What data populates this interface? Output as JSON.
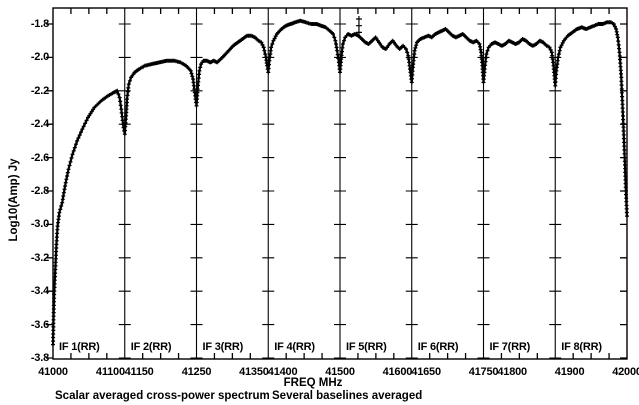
{
  "chart_data": {
    "type": "line",
    "title": "",
    "xlabel": "FREQ MHz",
    "ylabel": "Log10(Amp) Jy",
    "marker": "+",
    "grid": false,
    "xlim": [
      41000,
      42000
    ],
    "ylim": [
      -3.8,
      -1.7
    ],
    "x_minor_tick_mhz": 31.25,
    "panel_boundaries_mhz": [
      41125,
      41250,
      41375,
      41500,
      41625,
      41750,
      41875
    ],
    "panels": [
      {
        "label": "IF 1(RR)",
        "start": 41000,
        "end": 41125
      },
      {
        "label": "IF 2(RR)",
        "start": 41125,
        "end": 41250
      },
      {
        "label": "IF 3(RR)",
        "start": 41250,
        "end": 41375
      },
      {
        "label": "IF 4(RR)",
        "start": 41375,
        "end": 41500
      },
      {
        "label": "IF 5(RR)",
        "start": 41500,
        "end": 41625
      },
      {
        "label": "IF 6(RR)",
        "start": 41625,
        "end": 41750
      },
      {
        "label": "IF 7(RR)",
        "start": 41750,
        "end": 41875
      },
      {
        "label": "IF 8(RR)",
        "start": 41875,
        "end": 42000
      }
    ],
    "xticks": [
      {
        "value": 41000,
        "label": "41000"
      },
      {
        "value": 41100,
        "label": "41100"
      },
      {
        "value": 41150,
        "label": "41150"
      },
      {
        "value": 41250,
        "label": "41250"
      },
      {
        "value": 41350,
        "label": "41350"
      },
      {
        "value": 41400,
        "label": "41400"
      },
      {
        "value": 41500,
        "label": "41500"
      },
      {
        "value": 41600,
        "label": "41600"
      },
      {
        "value": 41650,
        "label": "41650"
      },
      {
        "value": 41750,
        "label": "41750"
      },
      {
        "value": 41800,
        "label": "41800"
      },
      {
        "value": 41900,
        "label": "41900"
      },
      {
        "value": 42000,
        "label": "42000"
      }
    ],
    "yticks": [
      {
        "value": -1.8,
        "label": "-1.8"
      },
      {
        "value": -2.0,
        "label": "-2.0"
      },
      {
        "value": -2.2,
        "label": "-2.2"
      },
      {
        "value": -2.4,
        "label": "-2.4"
      },
      {
        "value": -2.6,
        "label": "-2.6"
      },
      {
        "value": -2.8,
        "label": "-2.8"
      },
      {
        "value": -3.0,
        "label": "-3.0"
      },
      {
        "value": -3.2,
        "label": "-3.2"
      },
      {
        "value": -3.4,
        "label": "-3.4"
      },
      {
        "value": -3.6,
        "label": "-3.6"
      },
      {
        "value": -3.8,
        "label": "-3.8"
      }
    ],
    "series": [
      {
        "name": "scalar averaged cross-power spectrum",
        "points": [
          [
            41000,
            -3.72
          ],
          [
            41001,
            -3.55
          ],
          [
            41002,
            -3.42
          ],
          [
            41004,
            -3.27
          ],
          [
            41006,
            -3.12
          ],
          [
            41008,
            -3.01
          ],
          [
            41011,
            -2.93
          ],
          [
            41016,
            -2.87
          ],
          [
            41021,
            -2.77
          ],
          [
            41027,
            -2.67
          ],
          [
            41034,
            -2.58
          ],
          [
            41042,
            -2.5
          ],
          [
            41051,
            -2.43
          ],
          [
            41061,
            -2.36
          ],
          [
            41072,
            -2.3
          ],
          [
            41084,
            -2.26
          ],
          [
            41096,
            -2.23
          ],
          [
            41106,
            -2.21
          ],
          [
            41112,
            -2.2
          ],
          [
            41116,
            -2.24
          ],
          [
            41119,
            -2.31
          ],
          [
            41122,
            -2.4
          ],
          [
            41125,
            -2.46
          ],
          [
            41127,
            -2.37
          ],
          [
            41129,
            -2.25
          ],
          [
            41132,
            -2.16
          ],
          [
            41136,
            -2.12
          ],
          [
            41142,
            -2.09
          ],
          [
            41150,
            -2.07
          ],
          [
            41160,
            -2.05
          ],
          [
            41172,
            -2.04
          ],
          [
            41185,
            -2.03
          ],
          [
            41198,
            -2.02
          ],
          [
            41212,
            -2.02
          ],
          [
            41222,
            -2.03
          ],
          [
            41232,
            -2.05
          ],
          [
            41240,
            -2.08
          ],
          [
            41244,
            -2.13
          ],
          [
            41247,
            -2.21
          ],
          [
            41250,
            -2.29
          ],
          [
            41252,
            -2.19
          ],
          [
            41255,
            -2.08
          ],
          [
            41258,
            -2.04
          ],
          [
            41262,
            -2.02
          ],
          [
            41268,
            -2.02
          ],
          [
            41274,
            -2.03
          ],
          [
            41280,
            -2.02
          ],
          [
            41286,
            -2.03
          ],
          [
            41292,
            -2.01
          ],
          [
            41298,
            -1.99
          ],
          [
            41306,
            -1.96
          ],
          [
            41314,
            -1.93
          ],
          [
            41322,
            -1.91
          ],
          [
            41330,
            -1.89
          ],
          [
            41338,
            -1.87
          ],
          [
            41345,
            -1.87
          ],
          [
            41352,
            -1.88
          ],
          [
            41358,
            -1.9
          ],
          [
            41363,
            -1.91
          ],
          [
            41367,
            -1.94
          ],
          [
            41371,
            -2.0
          ],
          [
            41373,
            -2.05
          ],
          [
            41375,
            -2.09
          ],
          [
            41377,
            -2.02
          ],
          [
            41380,
            -1.94
          ],
          [
            41384,
            -1.9
          ],
          [
            41390,
            -1.86
          ],
          [
            41398,
            -1.83
          ],
          [
            41406,
            -1.81
          ],
          [
            41414,
            -1.8
          ],
          [
            41422,
            -1.79
          ],
          [
            41431,
            -1.78
          ],
          [
            41440,
            -1.79
          ],
          [
            41450,
            -1.8
          ],
          [
            41459,
            -1.8
          ],
          [
            41467,
            -1.81
          ],
          [
            41475,
            -1.82
          ],
          [
            41482,
            -1.84
          ],
          [
            41488,
            -1.86
          ],
          [
            41492,
            -1.9
          ],
          [
            41495,
            -1.96
          ],
          [
            41498,
            -2.03
          ],
          [
            41500,
            -2.09
          ],
          [
            41502,
            -2.01
          ],
          [
            41505,
            -1.92
          ],
          [
            41509,
            -1.88
          ],
          [
            41514,
            -1.86
          ],
          [
            41520,
            -1.87
          ],
          [
            41526,
            -1.86
          ],
          [
            41532,
            -1.87
          ],
          [
            41538,
            -1.89
          ],
          [
            41544,
            -1.91
          ],
          [
            41550,
            -1.92
          ],
          [
            41556,
            -1.9
          ],
          [
            41562,
            -1.88
          ],
          [
            41568,
            -1.91
          ],
          [
            41574,
            -1.94
          ],
          [
            41580,
            -1.95
          ],
          [
            41586,
            -1.92
          ],
          [
            41592,
            -1.9
          ],
          [
            41598,
            -1.93
          ],
          [
            41604,
            -1.95
          ],
          [
            41610,
            -1.93
          ],
          [
            41615,
            -1.95
          ],
          [
            41619,
            -1.99
          ],
          [
            41622,
            -2.07
          ],
          [
            41625,
            -2.15
          ],
          [
            41627,
            -2.06
          ],
          [
            41630,
            -1.96
          ],
          [
            41634,
            -1.91
          ],
          [
            41640,
            -1.89
          ],
          [
            41647,
            -1.88
          ],
          [
            41654,
            -1.87
          ],
          [
            41660,
            -1.88
          ],
          [
            41666,
            -1.86
          ],
          [
            41672,
            -1.85
          ],
          [
            41678,
            -1.84
          ],
          [
            41684,
            -1.83
          ],
          [
            41690,
            -1.85
          ],
          [
            41696,
            -1.87
          ],
          [
            41702,
            -1.88
          ],
          [
            41708,
            -1.87
          ],
          [
            41714,
            -1.86
          ],
          [
            41720,
            -1.88
          ],
          [
            41726,
            -1.9
          ],
          [
            41732,
            -1.91
          ],
          [
            41738,
            -1.9
          ],
          [
            41743,
            -1.92
          ],
          [
            41746,
            -1.97
          ],
          [
            41748,
            -2.05
          ],
          [
            41750,
            -2.15
          ],
          [
            41752,
            -2.07
          ],
          [
            41755,
            -1.98
          ],
          [
            41759,
            -1.94
          ],
          [
            41764,
            -1.92
          ],
          [
            41770,
            -1.91
          ],
          [
            41776,
            -1.92
          ],
          [
            41782,
            -1.93
          ],
          [
            41788,
            -1.92
          ],
          [
            41794,
            -1.9
          ],
          [
            41800,
            -1.91
          ],
          [
            41806,
            -1.92
          ],
          [
            41812,
            -1.91
          ],
          [
            41818,
            -1.89
          ],
          [
            41824,
            -1.9
          ],
          [
            41830,
            -1.92
          ],
          [
            41836,
            -1.93
          ],
          [
            41842,
            -1.92
          ],
          [
            41848,
            -1.9
          ],
          [
            41854,
            -1.91
          ],
          [
            41860,
            -1.93
          ],
          [
            41865,
            -1.94
          ],
          [
            41869,
            -1.97
          ],
          [
            41872,
            -2.05
          ],
          [
            41875,
            -2.17
          ],
          [
            41877,
            -2.08
          ],
          [
            41880,
            -2.0
          ],
          [
            41884,
            -1.94
          ],
          [
            41890,
            -1.9
          ],
          [
            41897,
            -1.87
          ],
          [
            41905,
            -1.85
          ],
          [
            41913,
            -1.83
          ],
          [
            41921,
            -1.82
          ],
          [
            41929,
            -1.83
          ],
          [
            41936,
            -1.82
          ],
          [
            41943,
            -1.81
          ],
          [
            41950,
            -1.8
          ],
          [
            41958,
            -1.8
          ],
          [
            41965,
            -1.79
          ],
          [
            41972,
            -1.79
          ],
          [
            41977,
            -1.8
          ],
          [
            41981,
            -1.83
          ],
          [
            41984,
            -1.88
          ],
          [
            41987,
            -1.97
          ],
          [
            41990,
            -2.12
          ],
          [
            41993,
            -2.35
          ],
          [
            41996,
            -2.6
          ],
          [
            41998,
            -2.8
          ],
          [
            42000,
            -2.95
          ]
        ]
      }
    ],
    "outliers": [
      [
        41533,
        -1.77
      ],
      [
        41533,
        -1.81
      ],
      [
        41533,
        -1.85
      ]
    ],
    "colors": {
      "data": "#000000",
      "frame": "#000000",
      "background": "#ffffff"
    }
  },
  "captions": {
    "bottom_left": "Scalar averaged cross-power spectrum",
    "bottom_right": "Several baselines averaged"
  }
}
